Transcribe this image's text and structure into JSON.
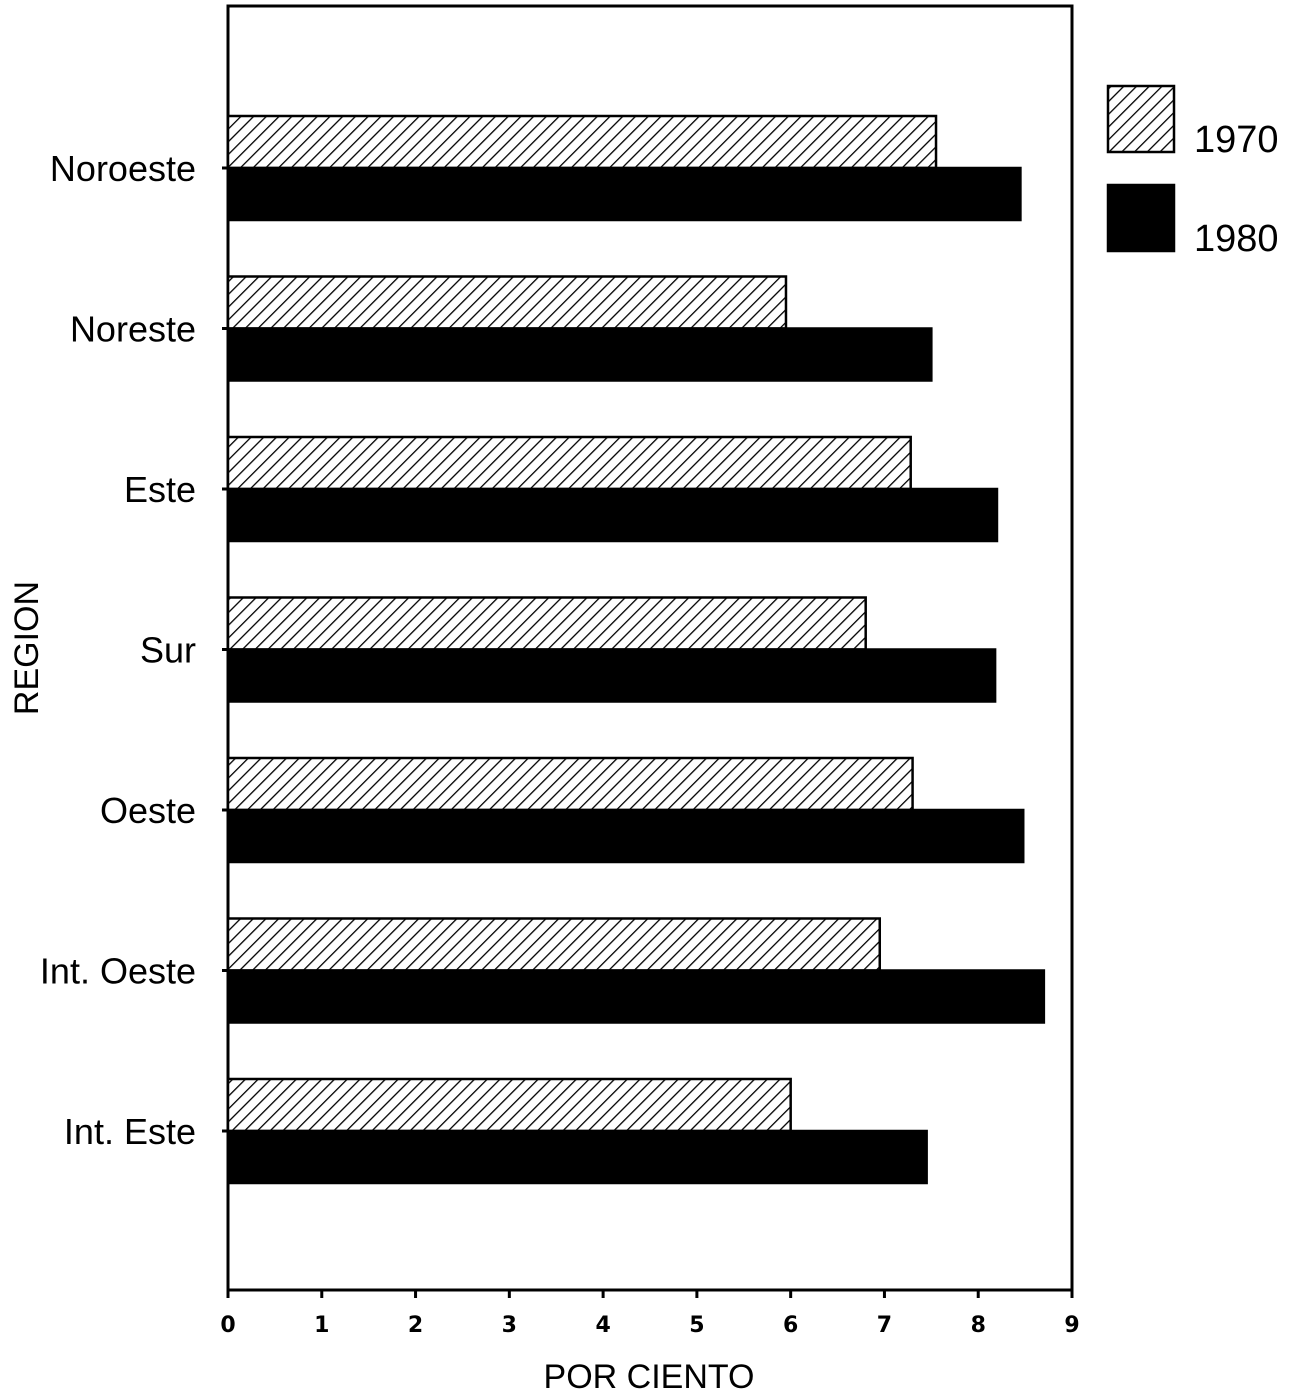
{
  "chart_data": {
    "type": "bar",
    "orientation": "horizontal",
    "categories": [
      "Noroeste",
      "Noreste",
      "Este",
      "Sur",
      "Oeste",
      "Int. Oeste",
      "Int. Este"
    ],
    "series": [
      {
        "name": "1970",
        "values": [
          7.55,
          5.95,
          7.28,
          6.8,
          7.3,
          6.95,
          6.0
        ],
        "pattern": "diagonal-hatch",
        "color": "#000000"
      },
      {
        "name": "1980",
        "values": [
          8.45,
          7.5,
          8.2,
          8.18,
          8.48,
          8.7,
          7.45
        ],
        "pattern": "solid",
        "color": "#000000"
      }
    ],
    "xlabel": "POR CIENTO",
    "ylabel": "REGION",
    "xlim": [
      0,
      9
    ],
    "xticks": [
      0,
      1,
      2,
      3,
      4,
      5,
      6,
      7,
      8,
      9
    ],
    "grid": false,
    "legend_position": "top-right"
  }
}
